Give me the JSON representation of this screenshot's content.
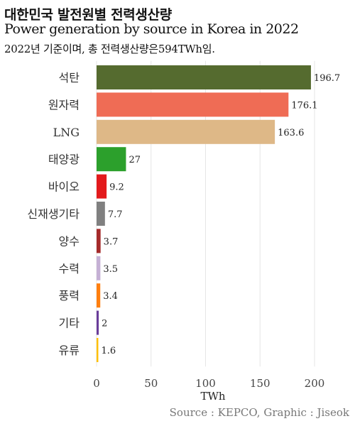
{
  "header": {
    "title": "대한민국 발전원별 전력생산량",
    "subtitle": "Power generation by source in Korea in 2022",
    "caption": "2022년 기준이며, 총 전력생산량은594TWh임."
  },
  "footer": {
    "source": "Source : KEPCO, Graphic : Jiseok"
  },
  "chart_data": {
    "type": "bar",
    "orientation": "horizontal",
    "categories": [
      "석탄",
      "원자력",
      "LNG",
      "태양광",
      "바이오",
      "신재생기타",
      "양수",
      "수력",
      "풍력",
      "기타",
      "유류"
    ],
    "values": [
      196.7,
      176.1,
      163.6,
      27,
      9.2,
      7.7,
      3.7,
      3.5,
      3.4,
      2,
      1.6
    ],
    "value_labels": [
      "196.7",
      "176.1",
      "163.6",
      "27",
      "9.2",
      "7.7",
      "3.7",
      "3.5",
      "3.4",
      "2",
      "1.6"
    ],
    "colors": [
      "#556b2f",
      "#ef6c55",
      "#deb887",
      "#2ca02c",
      "#e31a1c",
      "#808080",
      "#a52a2a",
      "#c5b0d5",
      "#ff7f0e",
      "#6a3d9a",
      "#ffbf00"
    ],
    "xlabel": "TWh",
    "xlim": [
      0,
      200
    ],
    "xticks": [
      0,
      50,
      100,
      150,
      200
    ],
    "grid": true
  }
}
